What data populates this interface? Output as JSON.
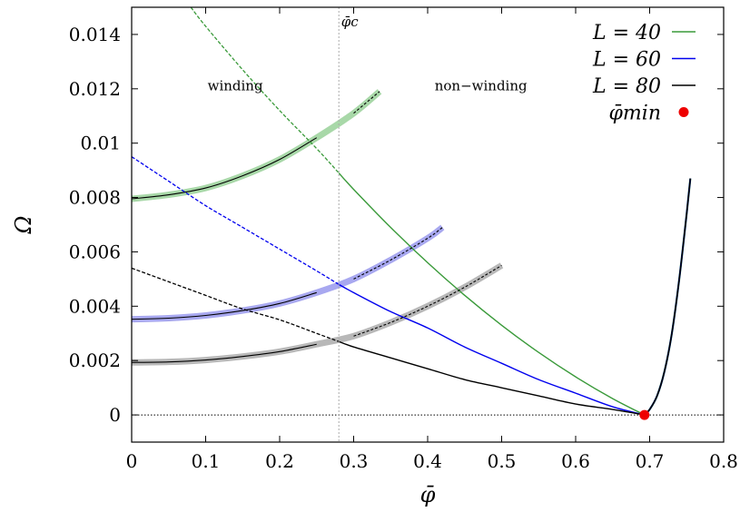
{
  "chart_data": {
    "type": "line",
    "title": "",
    "xlabel": "φ̄",
    "ylabel": "Ω",
    "xlim": [
      0,
      0.8
    ],
    "ylim": [
      -0.001,
      0.015
    ],
    "xticks": [
      "0",
      "0.1",
      "0.2",
      "0.3",
      "0.4",
      "0.5",
      "0.6",
      "0.7",
      "0.8"
    ],
    "xtick_values": [
      0,
      0.1,
      0.2,
      0.3,
      0.4,
      0.5,
      0.6,
      0.7,
      0.8
    ],
    "yticks": [
      "0",
      "0.002",
      "0.004",
      "0.006",
      "0.008",
      "0.01",
      "0.012",
      "0.014"
    ],
    "ytick_values": [
      0,
      0.002,
      0.004,
      0.006,
      0.008,
      0.01,
      0.012,
      0.014
    ],
    "grid": false,
    "legend_position": "top-right",
    "phi_c": 0.28,
    "phi_c_label": "φ̄c",
    "regions": {
      "winding": "winding",
      "non_winding": "non−winding"
    },
    "series": [
      {
        "name": "L = 40",
        "color": "#3a9a3a",
        "band_color": "#a8d8a8",
        "winding": {
          "x": [
            0,
            0.05,
            0.1,
            0.15,
            0.2,
            0.25,
            0.3,
            0.335
          ],
          "y": [
            0.00795,
            0.0081,
            0.00835,
            0.0088,
            0.0094,
            0.0102,
            0.0111,
            0.0119
          ]
        },
        "non_winding": {
          "x": [
            0.08,
            0.1,
            0.15,
            0.2,
            0.25,
            0.28,
            0.3,
            0.35,
            0.4,
            0.45,
            0.5,
            0.55,
            0.6,
            0.65,
            0.693
          ],
          "y": [
            0.015,
            0.0143,
            0.0127,
            0.0112,
            0.0098,
            0.0089,
            0.0083,
            0.0069,
            0.0056,
            0.0044,
            0.0033,
            0.0023,
            0.0014,
            0.0006,
            0.0
          ]
        },
        "non_winding_dashed_to": 0.28
      },
      {
        "name": "L = 60",
        "color": "#0000ee",
        "band_color": "#a8a8f0",
        "winding": {
          "x": [
            0,
            0.05,
            0.1,
            0.15,
            0.2,
            0.25,
            0.3,
            0.35,
            0.4,
            0.42
          ],
          "y": [
            0.00352,
            0.00356,
            0.00366,
            0.00384,
            0.0041,
            0.0045,
            0.005,
            0.0057,
            0.0065,
            0.0069
          ]
        },
        "non_winding": {
          "x": [
            0,
            0.05,
            0.1,
            0.15,
            0.2,
            0.25,
            0.28,
            0.3,
            0.35,
            0.4,
            0.45,
            0.5,
            0.55,
            0.6,
            0.65,
            0.693
          ],
          "y": [
            0.0095,
            0.0086,
            0.0077,
            0.0069,
            0.0061,
            0.0053,
            0.0048,
            0.0045,
            0.0038,
            0.0032,
            0.0025,
            0.0019,
            0.0013,
            0.0008,
            0.0003,
            0.0
          ]
        },
        "non_winding_dashed_to": 0.28
      },
      {
        "name": "L = 80",
        "color": "#000000",
        "band_color": "#b8b8b8",
        "winding": {
          "x": [
            0,
            0.05,
            0.1,
            0.15,
            0.2,
            0.25,
            0.3,
            0.35,
            0.4,
            0.45,
            0.5
          ],
          "y": [
            0.00193,
            0.00195,
            0.00202,
            0.00215,
            0.00233,
            0.0026,
            0.0029,
            0.0034,
            0.004,
            0.0047,
            0.0055
          ]
        },
        "non_winding": {
          "x": [
            0,
            0.05,
            0.1,
            0.15,
            0.2,
            0.25,
            0.28,
            0.3,
            0.35,
            0.4,
            0.45,
            0.5,
            0.55,
            0.6,
            0.65,
            0.693
          ],
          "y": [
            0.0054,
            0.0049,
            0.0044,
            0.0039,
            0.0035,
            0.003,
            0.0027,
            0.0025,
            0.0021,
            0.0017,
            0.0013,
            0.001,
            0.0007,
            0.0004,
            0.0002,
            0.0
          ]
        },
        "non_winding_dashed_to": 0.28
      }
    ],
    "right_branch": {
      "x": [
        0.693,
        0.7,
        0.71,
        0.72,
        0.73,
        0.74,
        0.75,
        0.755
      ],
      "y": [
        0.0,
        0.0002,
        0.0007,
        0.0016,
        0.003,
        0.005,
        0.0074,
        0.0087
      ],
      "color": "#000000"
    },
    "minimum_point": {
      "x": 0.693,
      "y": 0.0,
      "color": "#ee0000"
    },
    "legend": [
      {
        "label": "L = 40",
        "color": "#3a9a3a",
        "kind": "line"
      },
      {
        "label": "L = 60",
        "color": "#0000ee",
        "kind": "line"
      },
      {
        "label": "L = 80",
        "color": "#000000",
        "kind": "line"
      },
      {
        "label": "φ̄min",
        "color": "#ee0000",
        "kind": "point"
      }
    ]
  }
}
